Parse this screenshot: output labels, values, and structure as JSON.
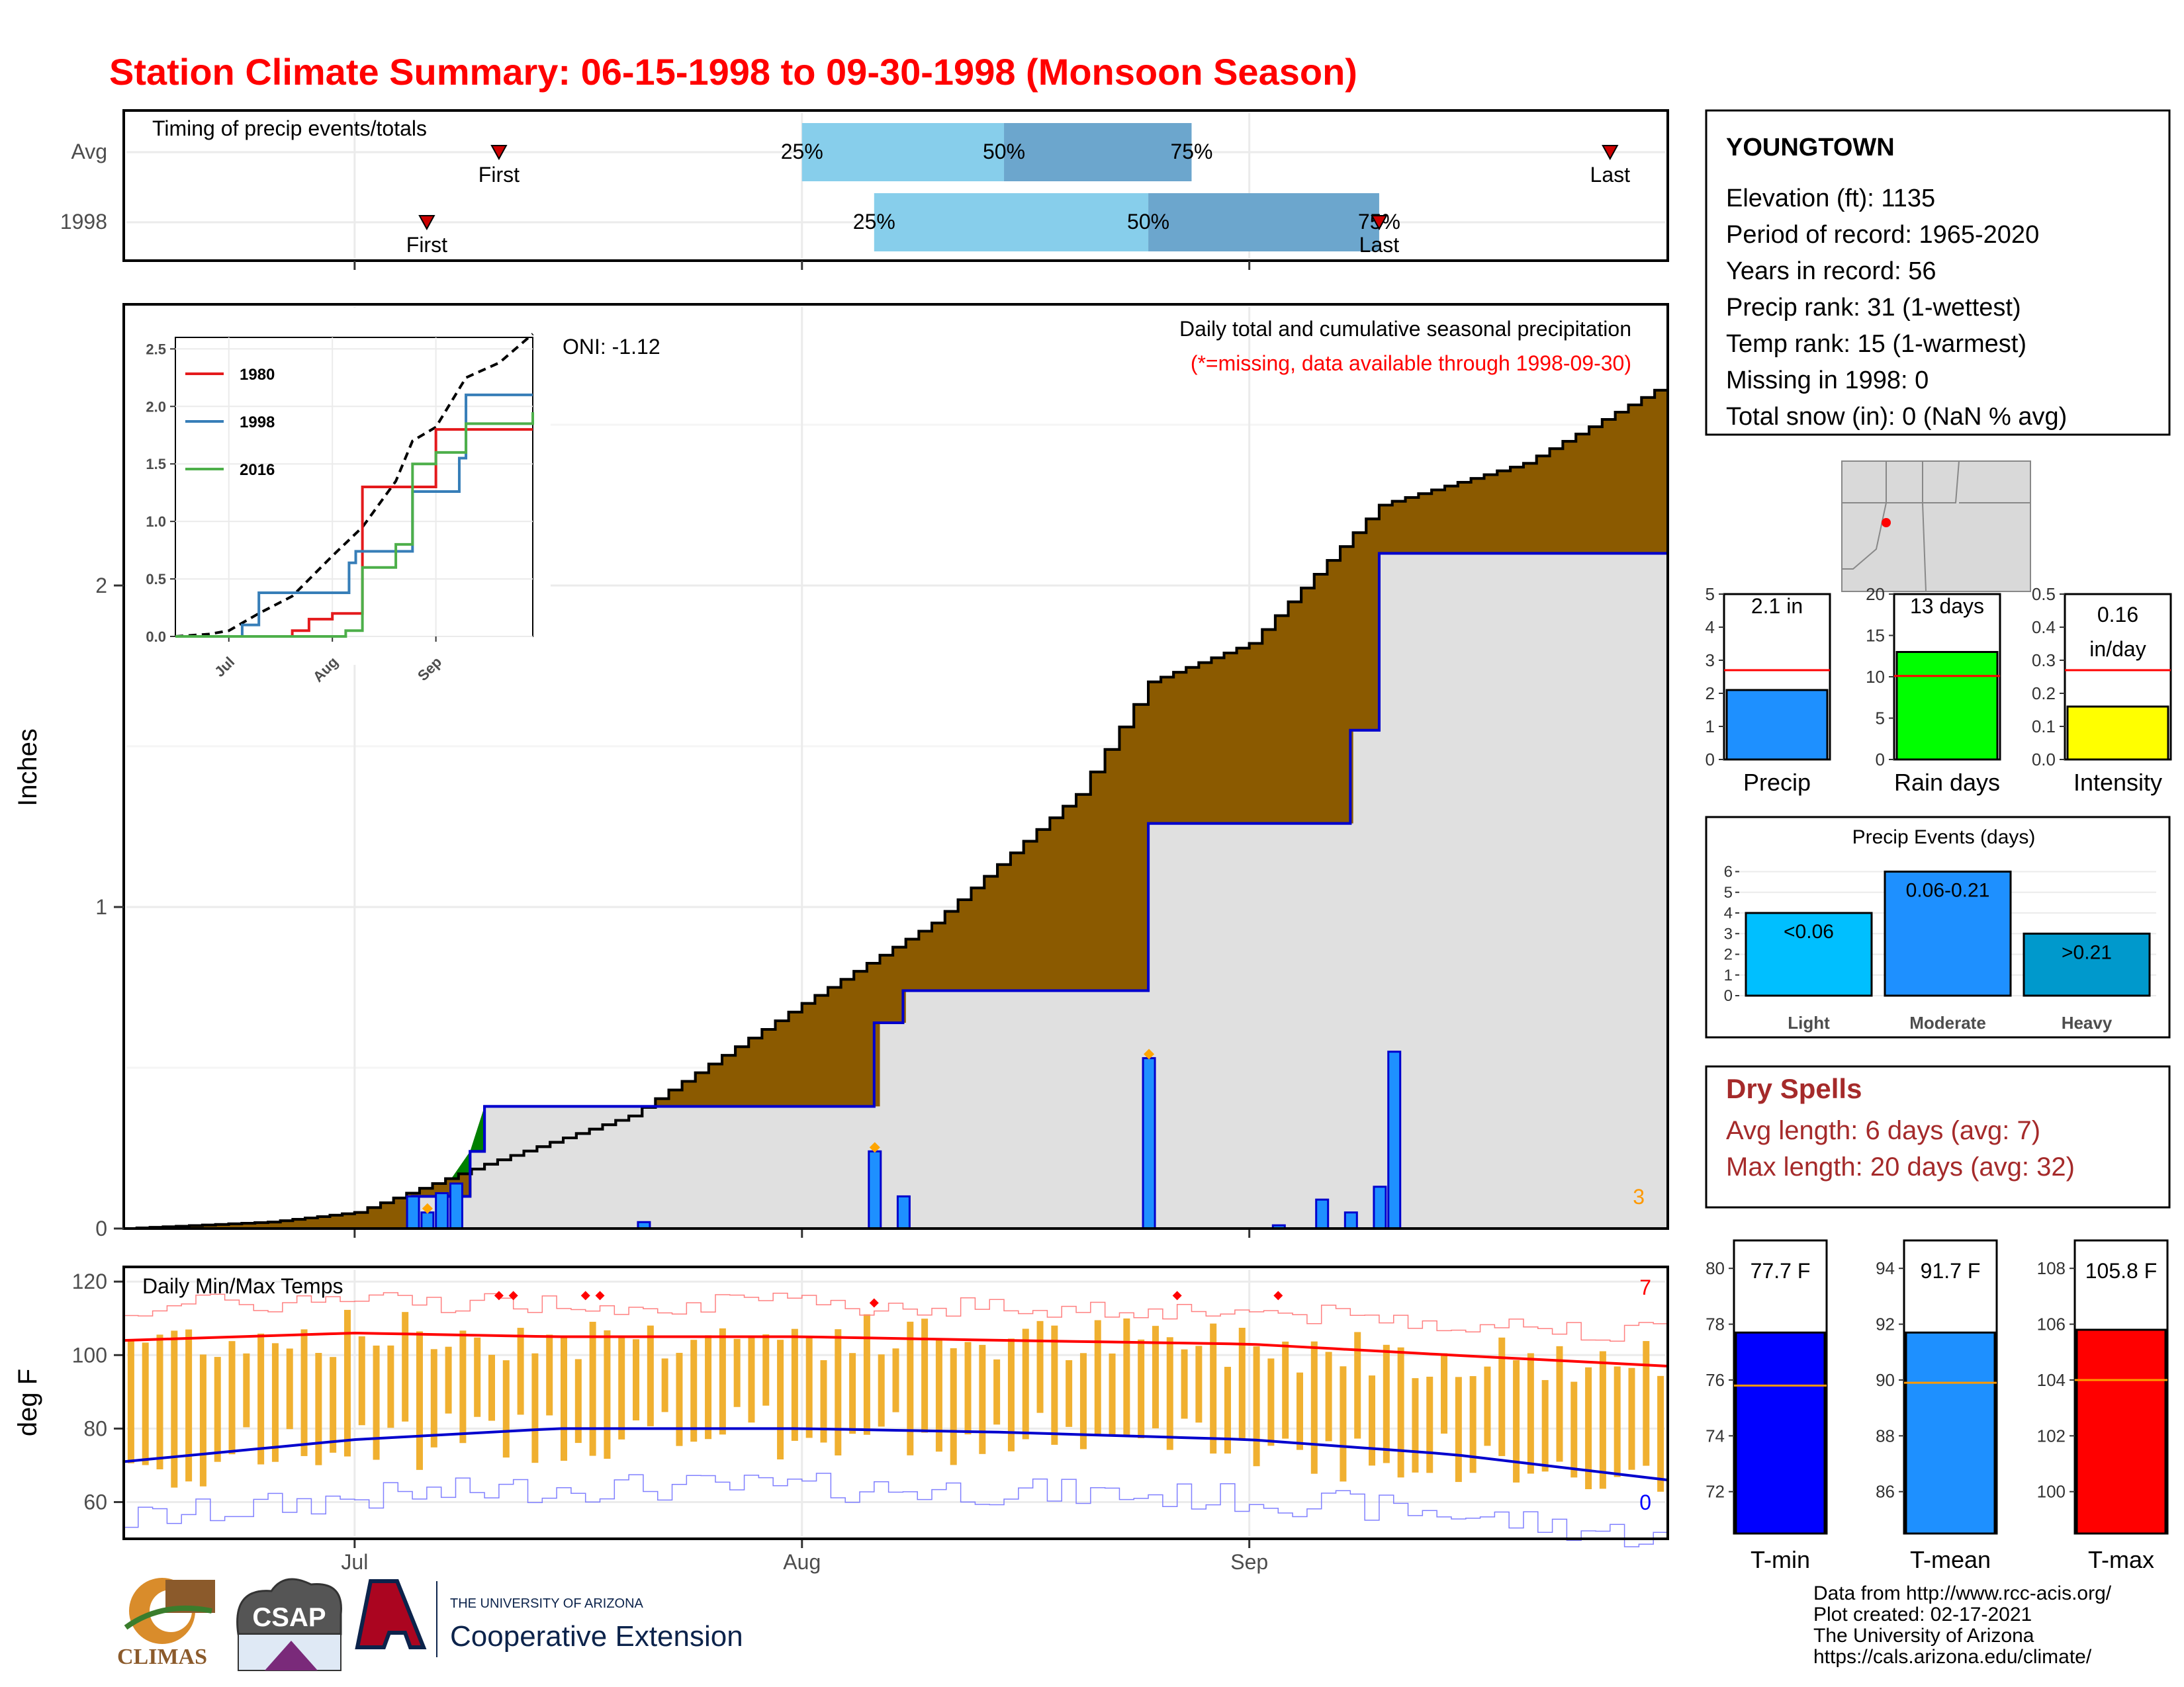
{
  "title": "Station Climate Summary: 06-15-1998 to 09-30-1998 (Monsoon Season)",
  "colors": {
    "title": "#ff0000",
    "seasonal_fill": "#8b5a00",
    "excess_fill": "#008000",
    "avg_fill": "#e0e0e0",
    "bars": "#1e90ff",
    "bar_edge": "#0000cd",
    "tmax_line": "#ff0000",
    "tmin_line": "#0000cd",
    "range_bars": "#f0b030",
    "dry_spells": "#a52a2a"
  },
  "timing": {
    "label": "Timing of precip events/totals",
    "rows": [
      {
        "name": "Avg",
        "first": "07-11",
        "q25": "08-01",
        "q50": "08-15",
        "q75": "08-28",
        "last": "09-26"
      },
      {
        "name": "1998",
        "first": "07-06",
        "q25": "08-06",
        "q50": "08-25",
        "q75": "09-10",
        "last": "09-10"
      }
    ],
    "first_label": "First",
    "last_label": "Last",
    "q25_label": "25%",
    "q50_label": "50%",
    "q75_label": "75%"
  },
  "precip": {
    "ylabel": "Inches",
    "annotation": "Daily total and cumulative seasonal precipitation",
    "missing_note": "(*=missing, data available through 1998-09-30)",
    "oni": "ONI: -1.12",
    "count": "3",
    "yticks": [
      "0",
      "1",
      "2"
    ],
    "xticks": [
      "Jul",
      "Aug",
      "Sep"
    ]
  },
  "inset": {
    "yticks": [
      "0.0",
      "0.5",
      "1.0",
      "1.5",
      "2.0",
      "2.5"
    ],
    "xticks": [
      "Jul",
      "Aug",
      "Sep"
    ],
    "legend": [
      {
        "name": "1980",
        "color": "#e41a1c"
      },
      {
        "name": "1998",
        "color": "#377eb8"
      },
      {
        "name": "2016",
        "color": "#4daf4a"
      }
    ]
  },
  "temp": {
    "label": "Daily Min/Max Temps",
    "ylabel": "deg F",
    "yticks": [
      "60",
      "80",
      "100",
      "120"
    ],
    "xticks": [
      "Jul",
      "Aug",
      "Sep"
    ],
    "count_hot": "7",
    "count_cold": "0"
  },
  "station": {
    "name": "YOUNGTOWN",
    "lines": [
      "Elevation (ft): 1135",
      "Period of record: 1965-2020",
      "Years in record: 56",
      "Precip rank: 31 (1-wettest)",
      "Temp rank: 15 (1-warmest)",
      "Missing in 1998: 0",
      "Total snow (in): 0 (NaN % avg)"
    ]
  },
  "mini_bars": [
    {
      "label": "Precip",
      "value_text": "2.1 in",
      "value": 2.1,
      "avg": 2.7,
      "max": 5,
      "ticks": [
        "0",
        "1",
        "2",
        "3",
        "4",
        "5"
      ],
      "color": "#1e90ff"
    },
    {
      "label": "Rain days",
      "value_text": "13 days",
      "value": 13,
      "avg": 10.1,
      "max": 20,
      "ticks": [
        "0",
        "5",
        "10",
        "15",
        "20"
      ],
      "color": "#00ff00"
    },
    {
      "label": "Intensity",
      "value_text": "0.16 in/day",
      "value_line1": "0.16",
      "value_line2": "in/day",
      "value": 0.16,
      "avg": 0.27,
      "max": 0.5,
      "ticks": [
        "0.0",
        "0.1",
        "0.2",
        "0.3",
        "0.4",
        "0.5"
      ],
      "color": "#ffff00"
    }
  ],
  "events": {
    "title": "Precip Events (days)",
    "bars": [
      {
        "label": "Light",
        "range": "<0.06",
        "value": 4,
        "color": "#00bfff"
      },
      {
        "label": "Moderate",
        "range": "0.06-0.21",
        "value": 6,
        "color": "#1e90ff"
      },
      {
        "label": "Heavy",
        "range": ">0.21",
        "value": 3,
        "color": "#0099cc"
      }
    ],
    "ticks": [
      "0",
      "1",
      "2",
      "3",
      "4",
      "5",
      "6"
    ]
  },
  "dry_spells": {
    "title": "Dry Spells",
    "avg_line": "Avg length: 6 days (avg: 7)",
    "max_line": "Max length: 20 days (avg: 32)"
  },
  "temp_bars": [
    {
      "label": "T-min",
      "value_text": "77.7 F",
      "value": 77.7,
      "avg": 75.8,
      "min": 70.5,
      "max": 81,
      "ticks": [
        "72",
        "74",
        "76",
        "78",
        "80"
      ],
      "color": "#0000ff"
    },
    {
      "label": "T-mean",
      "value_text": "91.7 F",
      "value": 91.7,
      "avg": 89.9,
      "min": 84.5,
      "max": 95,
      "ticks": [
        "86",
        "88",
        "90",
        "92",
        "94"
      ],
      "color": "#1e90ff"
    },
    {
      "label": "T-max",
      "value_text": "105.8 F",
      "value": 105.8,
      "avg": 104,
      "min": 98.5,
      "max": 109,
      "ticks": [
        "100",
        "102",
        "104",
        "106",
        "108"
      ],
      "color": "#ff0000"
    }
  ],
  "footer": [
    "Data from http://www.rcc-acis.org/",
    "Plot created: 02-17-2021",
    "The University of Arizona",
    "https://cals.arizona.edu/climate/"
  ],
  "logos": {
    "climas": "CLIMAS",
    "csap": "CSAP",
    "ua_line1": "THE UNIVERSITY OF ARIZONA",
    "ua_line2": "Cooperative Extension"
  },
  "chart_data": [
    {
      "type": "line",
      "title": "Daily total and cumulative seasonal precipitation",
      "ylabel": "Inches",
      "x_start": "1998-06-15",
      "x_end": "1998-09-30",
      "ylim": [
        0,
        2.8
      ],
      "series": [
        {
          "name": "cumulative 1998",
          "dates": [
            "06-15",
            "07-05",
            "07-07",
            "07-09",
            "07-10",
            "08-06",
            "08-08",
            "08-25",
            "09-08",
            "09-10",
            "09-30"
          ],
          "values": [
            0.0,
            0.1,
            0.1,
            0.24,
            0.38,
            0.64,
            0.74,
            1.26,
            1.55,
            2.1,
            2.1
          ]
        },
        {
          "name": "cumulative average",
          "dates": [
            "06-15",
            "06-25",
            "07-01",
            "07-10",
            "07-20",
            "08-01",
            "08-10",
            "08-20",
            "08-25",
            "09-01",
            "09-10",
            "09-20",
            "09-30"
          ],
          "values": [
            0.0,
            0.02,
            0.05,
            0.2,
            0.35,
            0.7,
            0.95,
            1.35,
            1.7,
            1.82,
            2.25,
            2.38,
            2.63
          ]
        },
        {
          "name": "daily precip 1998",
          "dates": [
            "07-05",
            "07-06",
            "07-07",
            "07-08",
            "07-21",
            "08-06",
            "08-08",
            "08-25",
            "09-03",
            "09-06",
            "09-08",
            "09-10",
            "09-11"
          ],
          "values": [
            0.1,
            0.05,
            0.11,
            0.14,
            0.02,
            0.24,
            0.1,
            0.53,
            0.01,
            0.09,
            0.05,
            0.13,
            0.55
          ]
        }
      ]
    },
    {
      "type": "line",
      "title": "Daily Min/Max Temps",
      "ylabel": "deg F",
      "ylim": [
        50,
        124
      ],
      "series": [
        {
          "name": "avg tmax",
          "dates": [
            "06-15",
            "07-01",
            "07-15",
            "08-01",
            "08-15",
            "09-01",
            "09-15",
            "09-30"
          ],
          "values": [
            104,
            106,
            105,
            105,
            104,
            103,
            100,
            97
          ]
        },
        {
          "name": "avg tmin",
          "dates": [
            "06-15",
            "07-01",
            "07-15",
            "08-01",
            "08-15",
            "09-01",
            "09-15",
            "09-30"
          ],
          "values": [
            71,
            77,
            80,
            80,
            79,
            77,
            73,
            66
          ]
        }
      ]
    },
    {
      "type": "line",
      "title": "",
      "ylim": [
        0,
        2.6
      ],
      "series": [
        {
          "name": "1980",
          "x": [
            "06-15",
            "07-20",
            "07-25",
            "08-01",
            "08-10",
            "08-15",
            "09-01",
            "09-30"
          ],
          "values": [
            0,
            0.05,
            0.15,
            0.2,
            1.3,
            1.3,
            1.8,
            1.8
          ]
        },
        {
          "name": "1998",
          "x": [
            "06-15",
            "07-05",
            "07-10",
            "08-06",
            "08-08",
            "08-25",
            "09-08",
            "09-10",
            "09-30"
          ],
          "values": [
            0,
            0.1,
            0.38,
            0.64,
            0.74,
            1.26,
            1.55,
            2.1,
            2.1
          ]
        },
        {
          "name": "2016",
          "x": [
            "06-15",
            "08-05",
            "08-10",
            "08-20",
            "08-25",
            "09-01",
            "09-10",
            "09-30"
          ],
          "values": [
            0,
            0.05,
            0.6,
            0.8,
            1.5,
            1.6,
            1.85,
            1.95
          ]
        }
      ]
    },
    {
      "type": "bar",
      "title": "Precip Events (days)",
      "categories": [
        "Light",
        "Moderate",
        "Heavy"
      ],
      "values": [
        4,
        6,
        3
      ],
      "ylim": [
        0,
        6.5
      ]
    }
  ]
}
